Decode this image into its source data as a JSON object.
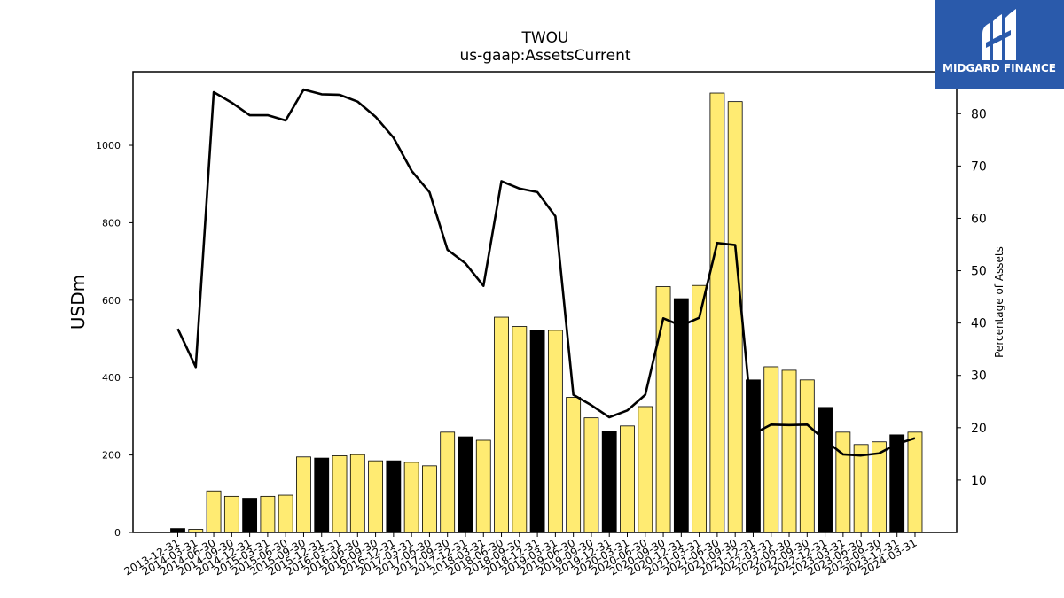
{
  "chart_data": {
    "type": "bar",
    "title": "TWOU",
    "subtitle": "us-gaap:AssetsCurrent",
    "ylabel": "USDm",
    "y2label": "Percentage of Assets",
    "ylim": [
      0,
      1190
    ],
    "y2lim": [
      0,
      88
    ],
    "yticks": [
      0,
      200,
      400,
      600,
      800,
      1000
    ],
    "y2ticks": [
      10,
      20,
      30,
      40,
      50,
      60,
      70,
      80
    ],
    "categories": [
      "2013-12-31",
      "2014-03-31",
      "2014-06-30",
      "2014-09-30",
      "2014-12-31",
      "2015-03-31",
      "2015-06-30",
      "2015-09-30",
      "2015-12-31",
      "2016-03-31",
      "2016-06-30",
      "2016-09-30",
      "2016-12-31",
      "2017-03-31",
      "2017-06-30",
      "2017-09-30",
      "2017-12-31",
      "2018-03-31",
      "2018-06-30",
      "2018-09-30",
      "2018-12-31",
      "2019-03-31",
      "2019-06-30",
      "2019-09-30",
      "2019-12-31",
      "2020-03-31",
      "2020-06-30",
      "2020-09-30",
      "2020-12-31",
      "2021-03-31",
      "2021-06-30",
      "2021-09-30",
      "2021-12-31",
      "2022-03-31",
      "2022-06-30",
      "2022-09-30",
      "2022-12-31",
      "2023-03-31",
      "2023-06-30",
      "2023-09-30",
      "2023-12-31",
      "2024-03-31"
    ],
    "series": [
      {
        "kind": "bar",
        "axis": "left",
        "values": [
          10,
          8,
          107,
          93,
          88,
          93,
          96,
          195,
          192,
          198,
          201,
          185,
          185,
          181,
          172,
          259,
          247,
          238,
          556,
          532,
          522,
          522,
          349,
          296,
          262,
          275,
          325,
          635,
          604,
          638,
          1135,
          1113,
          394,
          428,
          419,
          394,
          323,
          259,
          227,
          234,
          252,
          259
        ],
        "colors": [
          "#000000",
          "#ffeb72",
          "#ffeb72",
          "#ffeb72",
          "#000000",
          "#ffeb72",
          "#ffeb72",
          "#ffeb72",
          "#000000",
          "#ffeb72",
          "#ffeb72",
          "#ffeb72",
          "#000000",
          "#ffeb72",
          "#ffeb72",
          "#ffeb72",
          "#000000",
          "#ffeb72",
          "#ffeb72",
          "#ffeb72",
          "#000000",
          "#ffeb72",
          "#ffeb72",
          "#ffeb72",
          "#000000",
          "#ffeb72",
          "#ffeb72",
          "#ffeb72",
          "#000000",
          "#ffeb72",
          "#ffeb72",
          "#ffeb72",
          "#000000",
          "#ffeb72",
          "#ffeb72",
          "#ffeb72",
          "#000000",
          "#ffeb72",
          "#ffeb72",
          "#ffeb72",
          "#000000",
          "#ffeb72"
        ]
      },
      {
        "kind": "line",
        "axis": "right",
        "color": "#000000",
        "values": [
          38.9,
          31.6,
          84.1,
          82.1,
          79.7,
          79.7,
          78.7,
          84.6,
          83.7,
          83.6,
          82.3,
          79.4,
          75.4,
          69.1,
          65.0,
          54.0,
          51.4,
          47.1,
          67.1,
          65.7,
          65.0,
          60.4,
          26.3,
          24.3,
          22.0,
          23.3,
          26.3,
          40.9,
          39.5,
          41.0,
          55.3,
          54.9,
          18.8,
          20.6,
          20.5,
          20.6,
          17.6,
          14.9,
          14.7,
          15.1,
          16.9,
          18.0
        ]
      }
    ],
    "bar_color": "#ffeb72",
    "highlight_color": "#000000",
    "grid": false
  },
  "logo": {
    "text": "MIDGARD FINANCE",
    "background": "#2a5aab"
  }
}
